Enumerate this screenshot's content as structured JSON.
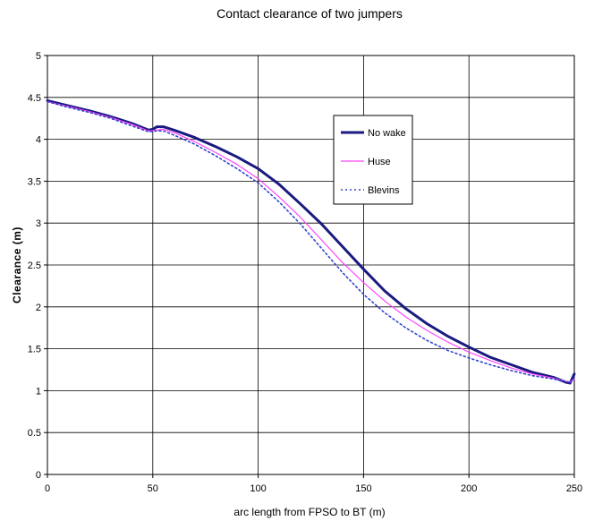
{
  "chart_data": {
    "type": "line",
    "title": "Contact clearance of two jumpers",
    "xlabel": "arc length from FPSO to BT (m)",
    "ylabel": "Clearance (m)",
    "xlim": [
      0,
      250
    ],
    "ylim": [
      0,
      5
    ],
    "xticks": [
      0,
      50,
      100,
      150,
      200,
      250
    ],
    "yticks": [
      0,
      0.5,
      1,
      1.5,
      2,
      2.5,
      3,
      3.5,
      4,
      4.5,
      5
    ],
    "xtick_labels": [
      "0",
      "50",
      "100",
      "150",
      "200",
      "250"
    ],
    "ytick_labels": [
      "0",
      "0.5",
      "1",
      "1.5",
      "2",
      "2.5",
      "3",
      "3.5",
      "4",
      "4.5",
      "5"
    ],
    "grid": true,
    "legend_position": "upper-right-inside",
    "series": [
      {
        "name": "No wake",
        "color": "#1a1a80",
        "style": "solid-thick",
        "points": [
          [
            0,
            4.46
          ],
          [
            10,
            4.4
          ],
          [
            20,
            4.34
          ],
          [
            30,
            4.27
          ],
          [
            40,
            4.19
          ],
          [
            48,
            4.11
          ],
          [
            50,
            4.12
          ],
          [
            52,
            4.15
          ],
          [
            55,
            4.15
          ],
          [
            60,
            4.11
          ],
          [
            70,
            4.02
          ],
          [
            80,
            3.91
          ],
          [
            90,
            3.79
          ],
          [
            100,
            3.65
          ],
          [
            110,
            3.46
          ],
          [
            120,
            3.23
          ],
          [
            130,
            2.99
          ],
          [
            140,
            2.72
          ],
          [
            150,
            2.45
          ],
          [
            160,
            2.19
          ],
          [
            170,
            1.98
          ],
          [
            180,
            1.8
          ],
          [
            190,
            1.65
          ],
          [
            200,
            1.52
          ],
          [
            210,
            1.4
          ],
          [
            220,
            1.31
          ],
          [
            230,
            1.22
          ],
          [
            240,
            1.16
          ],
          [
            246,
            1.1
          ],
          [
            248,
            1.09
          ],
          [
            250,
            1.2
          ]
        ]
      },
      {
        "name": "Huse",
        "color": "#ff44ff",
        "style": "solid-thin",
        "points": [
          [
            0,
            4.45
          ],
          [
            10,
            4.39
          ],
          [
            20,
            4.33
          ],
          [
            30,
            4.26
          ],
          [
            40,
            4.18
          ],
          [
            48,
            4.1
          ],
          [
            52,
            4.11
          ],
          [
            55,
            4.12
          ],
          [
            60,
            4.08
          ],
          [
            70,
            3.97
          ],
          [
            80,
            3.84
          ],
          [
            90,
            3.7
          ],
          [
            100,
            3.53
          ],
          [
            110,
            3.31
          ],
          [
            120,
            3.07
          ],
          [
            130,
            2.8
          ],
          [
            140,
            2.53
          ],
          [
            150,
            2.29
          ],
          [
            160,
            2.07
          ],
          [
            170,
            1.88
          ],
          [
            180,
            1.72
          ],
          [
            190,
            1.58
          ],
          [
            200,
            1.46
          ],
          [
            210,
            1.36
          ],
          [
            220,
            1.27
          ],
          [
            230,
            1.2
          ],
          [
            240,
            1.15
          ],
          [
            248,
            1.1
          ],
          [
            250,
            1.14
          ]
        ]
      },
      {
        "name": "Blevins",
        "color": "#3344cc",
        "style": "dotted",
        "points": [
          [
            0,
            4.45
          ],
          [
            10,
            4.38
          ],
          [
            20,
            4.32
          ],
          [
            30,
            4.25
          ],
          [
            40,
            4.16
          ],
          [
            48,
            4.09
          ],
          [
            52,
            4.1
          ],
          [
            55,
            4.1
          ],
          [
            60,
            4.05
          ],
          [
            70,
            3.94
          ],
          [
            80,
            3.8
          ],
          [
            90,
            3.65
          ],
          [
            100,
            3.48
          ],
          [
            110,
            3.25
          ],
          [
            120,
            2.99
          ],
          [
            130,
            2.7
          ],
          [
            140,
            2.41
          ],
          [
            150,
            2.15
          ],
          [
            160,
            1.93
          ],
          [
            170,
            1.75
          ],
          [
            180,
            1.6
          ],
          [
            190,
            1.48
          ],
          [
            200,
            1.39
          ],
          [
            210,
            1.31
          ],
          [
            220,
            1.24
          ],
          [
            230,
            1.18
          ],
          [
            240,
            1.14
          ],
          [
            248,
            1.1
          ],
          [
            250,
            1.16
          ]
        ]
      }
    ]
  }
}
